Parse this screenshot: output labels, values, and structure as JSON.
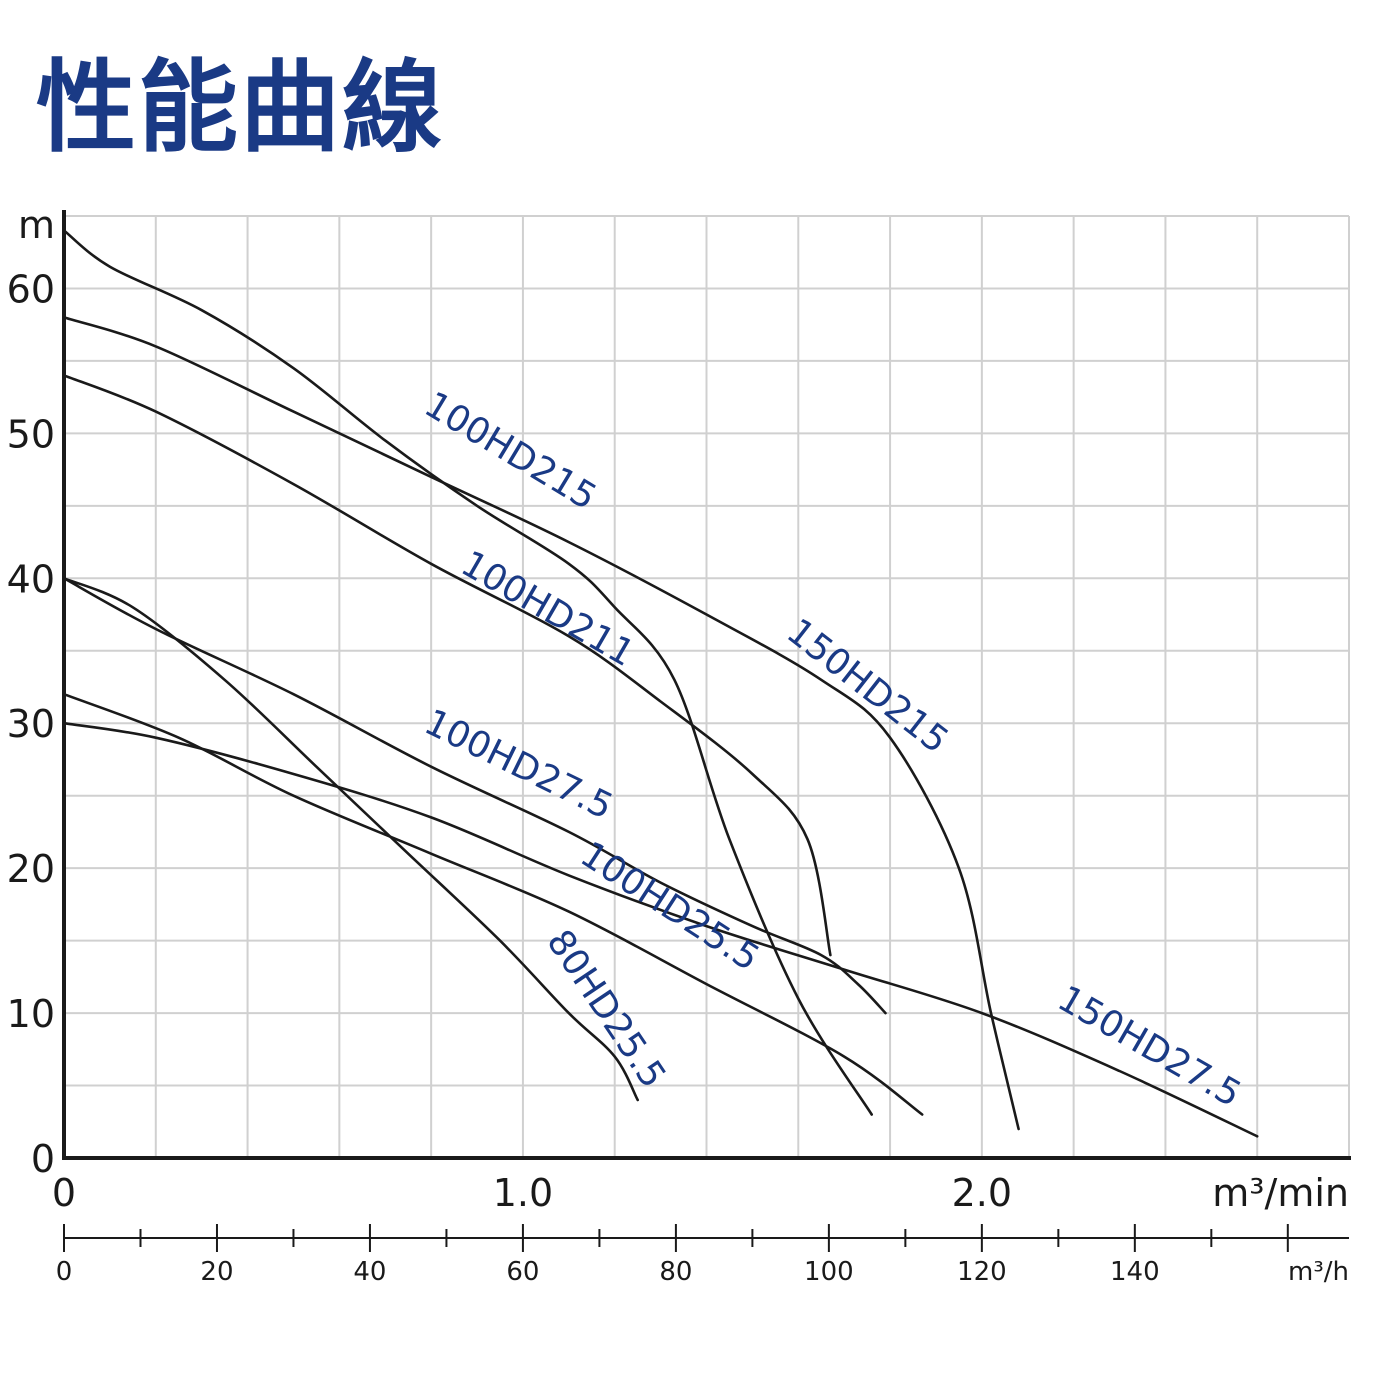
{
  "chart_data": {
    "type": "line",
    "title": "性能曲線",
    "ylabel": "m",
    "xlabel": "m³/min",
    "x2label": "m³/h",
    "xlim": [
      0,
      2.8
    ],
    "ylim": [
      0,
      65
    ],
    "yticks": [
      "0",
      "10",
      "20",
      "30",
      "40",
      "50",
      "60"
    ],
    "xticks": [
      "0",
      "1.0",
      "2.0"
    ],
    "x2ticks": [
      "0",
      "20",
      "40",
      "60",
      "80",
      "100",
      "120",
      "140"
    ],
    "grid": true,
    "colors": {
      "curve": "#1a1a1a",
      "label": "#1a3a85",
      "grid": "#d0d0d0",
      "axis": "#1a1a1a"
    },
    "series": [
      {
        "name": "100HD215",
        "points": [
          [
            0,
            64
          ],
          [
            0.1,
            61.5
          ],
          [
            0.3,
            58.5
          ],
          [
            0.5,
            54.5
          ],
          [
            0.7,
            49.5
          ],
          [
            0.9,
            45
          ],
          [
            1.1,
            41
          ],
          [
            1.2,
            38
          ],
          [
            1.33,
            33
          ],
          [
            1.45,
            22
          ],
          [
            1.6,
            11
          ],
          [
            1.76,
            3
          ]
        ]
      },
      {
        "name": "150HD215",
        "points": [
          [
            0,
            58
          ],
          [
            0.2,
            56
          ],
          [
            0.5,
            51.5
          ],
          [
            0.8,
            47
          ],
          [
            1.1,
            42.5
          ],
          [
            1.4,
            37.5
          ],
          [
            1.65,
            33
          ],
          [
            1.8,
            29
          ],
          [
            1.95,
            20
          ],
          [
            2.02,
            10
          ],
          [
            2.08,
            2
          ]
        ]
      },
      {
        "name": "100HD211",
        "points": [
          [
            0,
            54
          ],
          [
            0.2,
            51.5
          ],
          [
            0.5,
            46.5
          ],
          [
            0.8,
            41
          ],
          [
            1.1,
            36
          ],
          [
            1.3,
            31.5
          ],
          [
            1.5,
            26.5
          ],
          [
            1.62,
            22
          ],
          [
            1.67,
            14
          ]
        ]
      },
      {
        "name": "100HD27.5",
        "points": [
          [
            0,
            40
          ],
          [
            0.2,
            36.5
          ],
          [
            0.5,
            32
          ],
          [
            0.8,
            27
          ],
          [
            1.1,
            22.5
          ],
          [
            1.3,
            19
          ],
          [
            1.5,
            16
          ],
          [
            1.65,
            14
          ],
          [
            1.73,
            12
          ],
          [
            1.79,
            10
          ]
        ]
      },
      {
        "name": "80HD25.5",
        "points": [
          [
            0,
            40
          ],
          [
            0.15,
            38
          ],
          [
            0.35,
            33
          ],
          [
            0.55,
            27
          ],
          [
            0.75,
            21
          ],
          [
            0.95,
            15
          ],
          [
            1.1,
            10
          ],
          [
            1.2,
            7
          ],
          [
            1.25,
            4
          ]
        ]
      },
      {
        "name": "100HD25.5",
        "points": [
          [
            0,
            32
          ],
          [
            0.25,
            29
          ],
          [
            0.5,
            25
          ],
          [
            0.8,
            21
          ],
          [
            1.1,
            17
          ],
          [
            1.4,
            12
          ],
          [
            1.7,
            7
          ],
          [
            1.87,
            3
          ]
        ]
      },
      {
        "name": "150HD27.5",
        "points": [
          [
            0,
            30
          ],
          [
            0.2,
            29
          ],
          [
            0.5,
            26.5
          ],
          [
            0.8,
            23.5
          ],
          [
            1.1,
            19.5
          ],
          [
            1.4,
            16
          ],
          [
            1.7,
            13
          ],
          [
            2.0,
            10
          ],
          [
            2.3,
            6
          ],
          [
            2.6,
            1.5
          ]
        ]
      }
    ]
  }
}
